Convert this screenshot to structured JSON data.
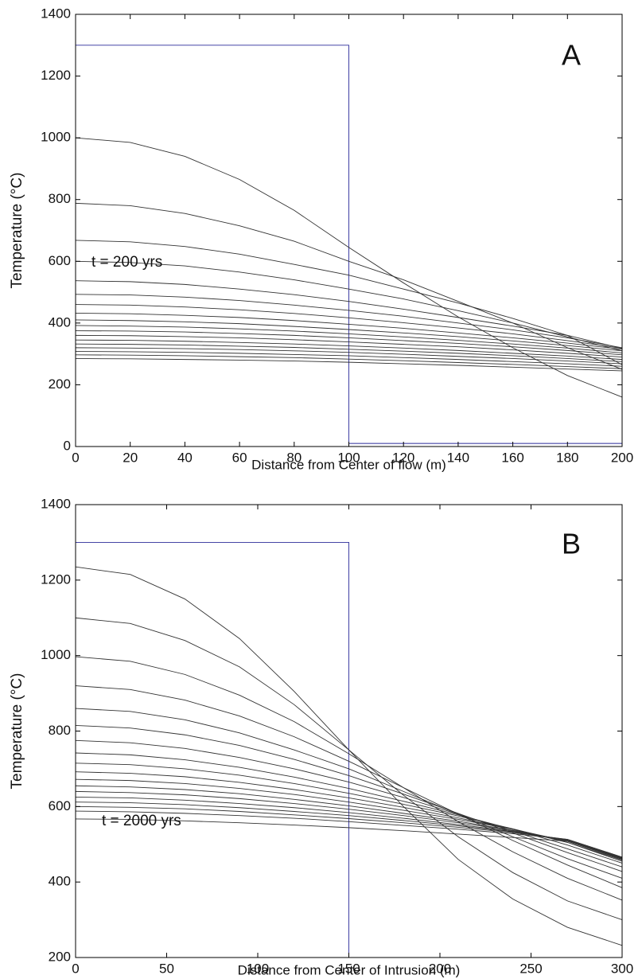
{
  "chart_data": [
    {
      "type": "line",
      "panel_label": "A",
      "annotation": "t = 200 yrs",
      "xlabel": "Distance from Center of flow (m)",
      "ylabel": "Temperature (°C)",
      "xlim": [
        0,
        200
      ],
      "ylim": [
        0,
        1400
      ],
      "xticks": [
        0,
        20,
        40,
        60,
        80,
        100,
        120,
        140,
        160,
        180,
        200
      ],
      "yticks": [
        0,
        200,
        400,
        600,
        800,
        1000,
        1200,
        1400
      ],
      "color": "#333333",
      "x": [
        0,
        20,
        40,
        60,
        80,
        100,
        120,
        140,
        160,
        180,
        200
      ],
      "series": [
        {
          "x": [
            0,
            100,
            100,
            200
          ],
          "values": [
            1300,
            1300,
            10,
            10
          ],
          "color": "#2b2b9a"
        },
        {
          "values": [
            1000,
            985,
            940,
            865,
            765,
            645,
            530,
            420,
            320,
            230,
            160
          ]
        },
        {
          "values": [
            788,
            780,
            755,
            715,
            665,
            600,
            540,
            470,
            400,
            320,
            250
          ]
        },
        {
          "values": [
            668,
            663,
            648,
            623,
            590,
            555,
            510,
            465,
            415,
            360,
            265
          ]
        },
        {
          "values": [
            600,
            596,
            585,
            565,
            540,
            510,
            478,
            440,
            400,
            355,
            310
          ]
        },
        {
          "values": [
            537,
            534,
            525,
            510,
            492,
            470,
            445,
            418,
            390,
            360,
            318
          ]
        },
        {
          "values": [
            493,
            491,
            484,
            473,
            458,
            441,
            422,
            400,
            378,
            352,
            320
          ]
        },
        {
          "values": [
            460,
            458,
            452,
            443,
            431,
            417,
            401,
            384,
            365,
            343,
            318
          ]
        },
        {
          "values": [
            432,
            430,
            425,
            418,
            408,
            396,
            383,
            368,
            352,
            335,
            315
          ]
        },
        {
          "values": [
            410,
            408,
            404,
            398,
            389,
            379,
            368,
            356,
            342,
            327,
            310
          ]
        },
        {
          "values": [
            392,
            390,
            387,
            381,
            374,
            365,
            355,
            344,
            332,
            319,
            303
          ]
        },
        {
          "values": [
            375,
            374,
            371,
            366,
            360,
            352,
            343,
            334,
            323,
            311,
            297
          ]
        },
        {
          "values": [
            360,
            359,
            356,
            352,
            346,
            339,
            331,
            323,
            313,
            302,
            290
          ]
        },
        {
          "values": [
            345,
            344,
            341,
            337,
            332,
            326,
            319,
            311,
            302,
            293,
            282
          ]
        },
        {
          "values": [
            332,
            331,
            329,
            325,
            321,
            315,
            309,
            302,
            294,
            285,
            275
          ]
        },
        {
          "values": [
            320,
            319,
            317,
            314,
            310,
            305,
            299,
            292,
            285,
            277,
            268
          ]
        },
        {
          "values": [
            308,
            307,
            305,
            302,
            298,
            294,
            288,
            282,
            275,
            268,
            260
          ]
        },
        {
          "values": [
            297,
            296,
            294,
            291,
            288,
            283,
            278,
            272,
            266,
            259,
            252
          ]
        },
        {
          "values": [
            285,
            284,
            282,
            280,
            277,
            273,
            268,
            263,
            257,
            251,
            245
          ]
        }
      ]
    },
    {
      "type": "line",
      "panel_label": "B",
      "annotation": "t = 2000 yrs",
      "xlabel": "Distance from Center of Intrusion (m)",
      "ylabel": "Temperature (°C)",
      "xlim": [
        0,
        300
      ],
      "ylim": [
        200,
        1400
      ],
      "xticks": [
        0,
        50,
        100,
        150,
        200,
        250,
        300
      ],
      "yticks": [
        200,
        400,
        600,
        800,
        1000,
        1200,
        1400
      ],
      "color": "#333333",
      "x": [
        0,
        30,
        60,
        90,
        120,
        150,
        180,
        210,
        240,
        270,
        300
      ],
      "series": [
        {
          "x": [
            0,
            150,
            150,
            300
          ],
          "values": [
            1300,
            1300,
            200,
            200
          ],
          "color": "#2b2b9a"
        },
        {
          "values": [
            1235,
            1215,
            1150,
            1045,
            905,
            750,
            600,
            460,
            355,
            280,
            232
          ]
        },
        {
          "values": [
            1100,
            1085,
            1040,
            970,
            870,
            750,
            630,
            520,
            425,
            350,
            300
          ]
        },
        {
          "values": [
            997,
            985,
            950,
            895,
            825,
            740,
            650,
            560,
            480,
            410,
            352
          ]
        },
        {
          "values": [
            920,
            910,
            882,
            840,
            785,
            720,
            650,
            580,
            510,
            445,
            385
          ]
        },
        {
          "values": [
            860,
            852,
            830,
            795,
            750,
            700,
            640,
            580,
            520,
            462,
            410
          ]
        },
        {
          "values": [
            815,
            808,
            790,
            762,
            725,
            682,
            633,
            582,
            530,
            478,
            428
          ]
        },
        {
          "values": [
            775,
            769,
            754,
            730,
            700,
            665,
            624,
            580,
            535,
            488,
            440
          ]
        },
        {
          "values": [
            742,
            737,
            724,
            704,
            678,
            648,
            614,
            578,
            540,
            498,
            450
          ]
        },
        {
          "values": [
            715,
            711,
            700,
            683,
            661,
            635,
            606,
            575,
            541,
            505,
            455
          ]
        },
        {
          "values": [
            692,
            688,
            679,
            664,
            645,
            623,
            598,
            570,
            540,
            505,
            458
          ]
        },
        {
          "values": [
            672,
            669,
            661,
            648,
            632,
            612,
            590,
            566,
            540,
            508,
            460
          ]
        },
        {
          "values": [
            655,
            652,
            645,
            634,
            619,
            602,
            582,
            561,
            537,
            508,
            462
          ]
        },
        {
          "values": [
            640,
            637,
            631,
            621,
            608,
            593,
            576,
            557,
            536,
            510,
            463
          ]
        },
        {
          "values": [
            625,
            623,
            617,
            608,
            597,
            584,
            569,
            552,
            534,
            511,
            464
          ]
        },
        {
          "values": [
            612,
            610,
            605,
            597,
            587,
            576,
            563,
            549,
            533,
            512,
            465
          ]
        },
        {
          "values": [
            600,
            598,
            594,
            587,
            578,
            568,
            557,
            545,
            531,
            513,
            466
          ]
        },
        {
          "values": [
            588,
            586,
            582,
            576,
            569,
            560,
            550,
            540,
            528,
            513,
            466
          ]
        },
        {
          "values": [
            567,
            566,
            562,
            557,
            551,
            544,
            536,
            527,
            518,
            508,
            460
          ]
        }
      ]
    }
  ]
}
